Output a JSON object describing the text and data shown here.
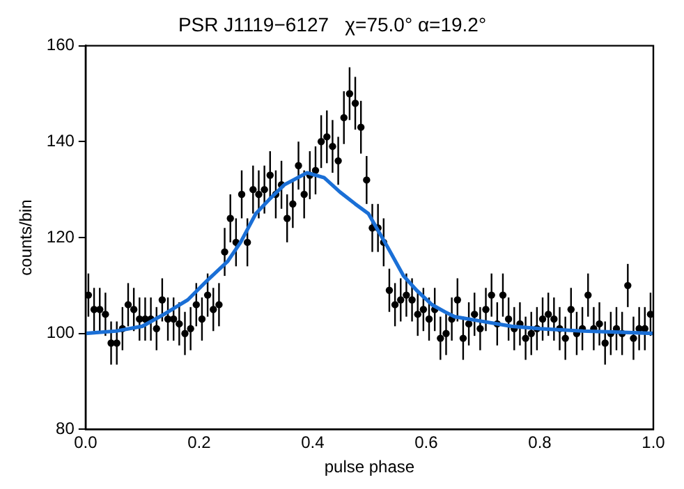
{
  "chart_data": {
    "type": "scatter",
    "title": "PSR J1119−6127   χ=75.0° α=19.2°",
    "xlabel": "pulse phase",
    "ylabel": "counts/bin",
    "xlim": [
      0,
      1
    ],
    "xticks": [
      {
        "value": 0,
        "label": "0.0"
      },
      {
        "value": 0.2,
        "label": "0.2"
      },
      {
        "value": 0.4,
        "label": "0.4"
      },
      {
        "value": 0.6,
        "label": "0.6"
      },
      {
        "value": 0.8,
        "label": "0.8"
      },
      {
        "value": 1,
        "label": "1.0"
      }
    ],
    "ylim": [
      80,
      160
    ],
    "yticks": [
      80,
      100,
      120,
      140,
      160
    ],
    "grid": false,
    "legend": false,
    "series": [
      {
        "color": "#000000",
        "marker": "circle",
        "x": [
          0.005,
          0.015,
          0.025,
          0.035,
          0.045,
          0.055,
          0.065,
          0.075,
          0.085,
          0.095,
          0.105,
          0.115,
          0.125,
          0.135,
          0.145,
          0.155,
          0.165,
          0.175,
          0.185,
          0.195,
          0.205,
          0.215,
          0.225,
          0.235,
          0.245,
          0.255,
          0.265,
          0.275,
          0.285,
          0.295,
          0.305,
          0.315,
          0.325,
          0.335,
          0.345,
          0.355,
          0.365,
          0.375,
          0.385,
          0.395,
          0.405,
          0.415,
          0.425,
          0.435,
          0.445,
          0.455,
          0.465,
          0.475,
          0.485,
          0.495,
          0.505,
          0.515,
          0.525,
          0.535,
          0.545,
          0.555,
          0.565,
          0.575,
          0.585,
          0.595,
          0.605,
          0.615,
          0.625,
          0.635,
          0.645,
          0.655,
          0.665,
          0.675,
          0.685,
          0.695,
          0.705,
          0.715,
          0.725,
          0.735,
          0.745,
          0.755,
          0.765,
          0.775,
          0.785,
          0.795,
          0.805,
          0.815,
          0.825,
          0.835,
          0.845,
          0.855,
          0.865,
          0.875,
          0.885,
          0.895,
          0.905,
          0.915,
          0.925,
          0.935,
          0.945,
          0.955,
          0.965,
          0.975,
          0.985,
          0.995
        ],
        "values": [
          108,
          105,
          105,
          104,
          98,
          98,
          101,
          106,
          105,
          103,
          103,
          103,
          101,
          107,
          103,
          103,
          102,
          100,
          101,
          106,
          103,
          108,
          105,
          106,
          117,
          124,
          119,
          129,
          119,
          130,
          129,
          130,
          133,
          129,
          131,
          124,
          127,
          135,
          129,
          133,
          134,
          140,
          141,
          139,
          136,
          145,
          150,
          148,
          143,
          132,
          122,
          122,
          119,
          109,
          106,
          107,
          108,
          107,
          104,
          105,
          103,
          105,
          99,
          100,
          103,
          107,
          99,
          102,
          104,
          101,
          105,
          108,
          102,
          108,
          103,
          101,
          102,
          99,
          100,
          101,
          103,
          104,
          103,
          101,
          99,
          105,
          100,
          101,
          108,
          101,
          102,
          98,
          100,
          101,
          100,
          110,
          99,
          101,
          101,
          104
        ],
        "errors": [
          4.5,
          4.5,
          4.5,
          4.5,
          4.5,
          4.5,
          4.5,
          4.5,
          4.5,
          4.5,
          4.5,
          4.5,
          4.5,
          4.5,
          4.5,
          4.5,
          4.5,
          4.5,
          4.5,
          4.5,
          4.5,
          4.5,
          4.5,
          4.5,
          5,
          5,
          5,
          5,
          5,
          5,
          5,
          5,
          5,
          5,
          5,
          5,
          5,
          5,
          5,
          5,
          5,
          5.5,
          5.5,
          5.5,
          5,
          5.5,
          5.5,
          5.5,
          5.5,
          5,
          5,
          5,
          5,
          4.5,
          4.5,
          4.5,
          4.5,
          4.5,
          4.5,
          4.5,
          4.5,
          4.5,
          4.5,
          4.5,
          4.5,
          4.5,
          4.5,
          4.5,
          4.5,
          4.5,
          4.5,
          4.5,
          4.5,
          4.5,
          4.5,
          4.5,
          4.5,
          4.5,
          4.5,
          4.5,
          4.5,
          4.5,
          4.5,
          4.5,
          4.5,
          4.5,
          4.5,
          4.5,
          4.5,
          4.5,
          4.5,
          4.5,
          4.5,
          4.5,
          4.5,
          4.5,
          4.5,
          4.5,
          4.5,
          4.5
        ]
      },
      {
        "type": "line",
        "color": "#1a6fd6",
        "marker": "none",
        "line_style": "solid",
        "x": [
          0,
          0.054,
          0.1,
          0.138,
          0.18,
          0.214,
          0.25,
          0.273,
          0.3,
          0.324,
          0.35,
          0.39,
          0.42,
          0.448,
          0.475,
          0.498,
          0.532,
          0.56,
          0.583,
          0.61,
          0.633,
          0.65,
          0.7,
          0.75,
          0.8,
          0.876,
          0.93,
          1
        ],
        "values": [
          100,
          100.5,
          101.5,
          104,
          107,
          111,
          115,
          119,
          125,
          128,
          131,
          133.5,
          132.5,
          129.5,
          127,
          125,
          118,
          112,
          109,
          106,
          104.5,
          103.5,
          102.5,
          101.5,
          101,
          100.5,
          100.3,
          100
        ]
      }
    ]
  }
}
